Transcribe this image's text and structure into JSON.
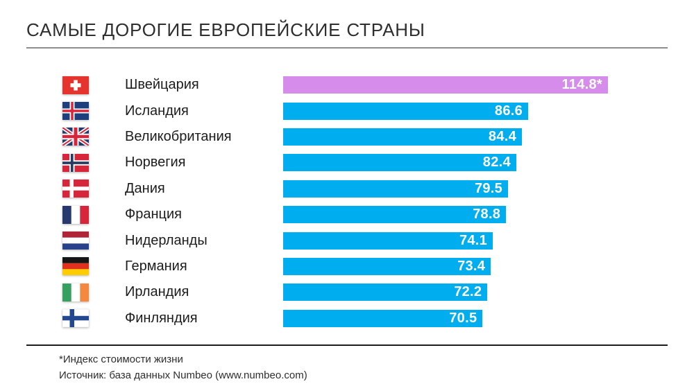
{
  "title": "САМЫЕ ДОРОГИЕ ЕВРОПЕЙСКИЕ СТРАНЫ",
  "footnote": "*Индекс стоимости жизни",
  "source": "Источник: база данных Numbeo (www.numbeo.com)",
  "chart_data": {
    "type": "bar",
    "orientation": "horizontal",
    "title": "САМЫЕ ДОРОГИЕ ЕВРОПЕЙСКИЕ СТРАНЫ",
    "categories": [
      "Швейцария",
      "Исландия",
      "Великобритания",
      "Норвегия",
      "Дания",
      "Франция",
      "Нидерланды",
      "Германия",
      "Ирландия",
      "Финляндия"
    ],
    "values": [
      114.8,
      86.6,
      84.4,
      82.4,
      79.5,
      78.8,
      74.1,
      73.4,
      72.2,
      70.5
    ],
    "value_labels": [
      "114.8*",
      "86.6",
      "84.4",
      "82.4",
      "79.5",
      "78.8",
      "74.1",
      "73.4",
      "72.2",
      "70.5"
    ],
    "xlim": [
      0,
      114.8
    ],
    "bar_color": "#00aeef",
    "highlight_color": "#d58ceb",
    "highlight_index": 0,
    "grid": false,
    "legend": false
  },
  "rows": [
    {
      "label": "Швейцария",
      "value": 114.8,
      "display": "114.8*",
      "flag": "switzerland",
      "highlight": true
    },
    {
      "label": "Исландия",
      "value": 86.6,
      "display": "86.6",
      "flag": "iceland",
      "highlight": false
    },
    {
      "label": "Великобритания",
      "value": 84.4,
      "display": "84.4",
      "flag": "united-kingdom",
      "highlight": false
    },
    {
      "label": "Норвегия",
      "value": 82.4,
      "display": "82.4",
      "flag": "norway",
      "highlight": false
    },
    {
      "label": "Дания",
      "value": 79.5,
      "display": "79.5",
      "flag": "denmark",
      "highlight": false
    },
    {
      "label": "Франция",
      "value": 78.8,
      "display": "78.8",
      "flag": "france",
      "highlight": false
    },
    {
      "label": "Нидерланды",
      "value": 74.1,
      "display": "74.1",
      "flag": "netherlands",
      "highlight": false
    },
    {
      "label": "Германия",
      "value": 73.4,
      "display": "73.4",
      "flag": "germany",
      "highlight": false
    },
    {
      "label": "Ирландия",
      "value": 72.2,
      "display": "72.2",
      "flag": "ireland",
      "highlight": false
    },
    {
      "label": "Финляндия",
      "value": 70.5,
      "display": "70.5",
      "flag": "finland",
      "highlight": false
    }
  ]
}
